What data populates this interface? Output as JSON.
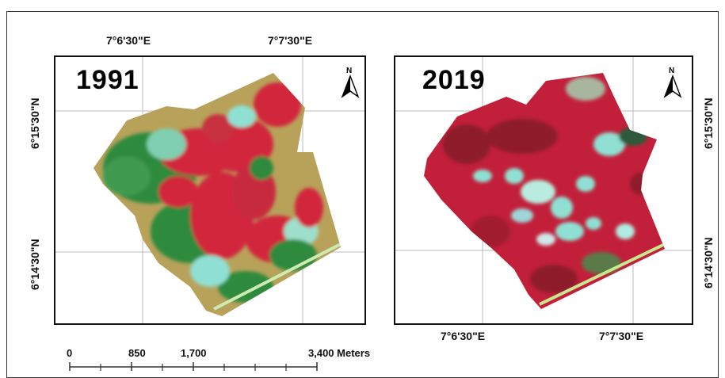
{
  "maps": [
    {
      "year": "1991",
      "lon_labels": [
        "7°6'30\"E",
        "7°7'30\"E"
      ],
      "lat_labels": [
        "6°15'30\"N",
        "6°14'30\"N"
      ],
      "north_label": "N"
    },
    {
      "year": "2019",
      "lon_labels": [
        "7°6'30\"E",
        "7°7'30\"E"
      ],
      "lat_labels": [
        "6°15'30\"N",
        "6°14'30\"N"
      ],
      "north_label": "N"
    }
  ],
  "scale_bar": {
    "labels": [
      "0",
      "850",
      "1,700",
      "3,400 Meters"
    ]
  },
  "colors": {
    "vegetation_red": "#d2283c",
    "forest_green": "#2e8a3c",
    "bare_cyan": "#8fe0d2",
    "soil_tan": "#b8a25a",
    "dark_red": "#8e1a2a"
  }
}
